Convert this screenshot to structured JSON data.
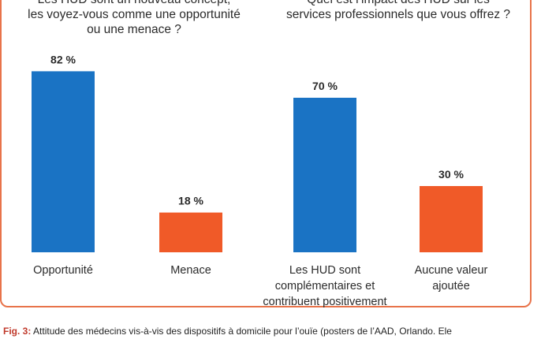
{
  "chart_data": [
    {
      "type": "bar",
      "title": "Les HUD sont un nouveau concept,\nles voyez-vous comme une opportunité\nou une menace ?",
      "categories": [
        "Opportunité",
        "Menace"
      ],
      "values": [
        82,
        18
      ],
      "value_labels": [
        "82 %",
        "18 %"
      ],
      "colors": [
        "#1a73c4",
        "#f05a28"
      ],
      "ylim": [
        0,
        100
      ],
      "grid": false
    },
    {
      "type": "bar",
      "title": "Quel est l’impact des HUD sur les\nservices professionnels que vous offrez ?",
      "categories": [
        "Les HUD sont\ncomplémentaires et\ncontribuent positivement",
        "Aucune valeur\najoutée"
      ],
      "values": [
        70,
        30
      ],
      "value_labels": [
        "70 %",
        "30 %"
      ],
      "colors": [
        "#1a73c4",
        "#f05a28"
      ],
      "ylim": [
        0,
        100
      ],
      "grid": false
    }
  ],
  "caption": {
    "fig_label": "Fig. 3:",
    "text": "Attitude des médecins vis-à-vis des dispositifs à domicile pour l’ouïe (posters de l’AAD, Orlando. Ele"
  }
}
